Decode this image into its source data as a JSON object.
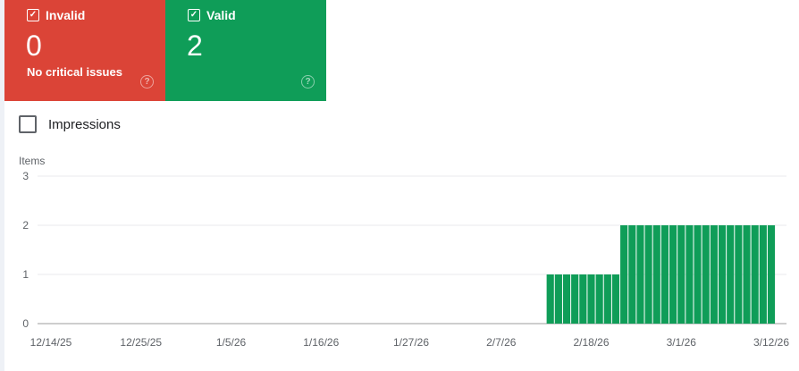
{
  "cards": [
    {
      "label": "Invalid",
      "count": "0",
      "subtitle": "No critical issues",
      "checked": true,
      "color": "#db4437"
    },
    {
      "label": "Valid",
      "count": "2",
      "subtitle": "",
      "checked": true,
      "color": "#0f9d58"
    }
  ],
  "impressions": {
    "label": "Impressions",
    "checked": false
  },
  "chart_data": {
    "type": "bar",
    "ylabel": "Items",
    "ylim": [
      0,
      3
    ],
    "yticks": [
      "0",
      "1",
      "2",
      "3"
    ],
    "xlim": [
      "12/14/25",
      "3/12/26"
    ],
    "xticks": [
      "12/14/25",
      "12/25/25",
      "1/5/26",
      "1/16/26",
      "1/27/26",
      "2/7/26",
      "2/18/26",
      "3/1/26",
      "3/12/26"
    ],
    "grid": true,
    "color": "#0f9d58",
    "points": [
      {
        "date": "2/13/26",
        "value": 1
      },
      {
        "date": "2/14/26",
        "value": 1
      },
      {
        "date": "2/15/26",
        "value": 1
      },
      {
        "date": "2/16/26",
        "value": 1
      },
      {
        "date": "2/17/26",
        "value": 1
      },
      {
        "date": "2/18/26",
        "value": 1
      },
      {
        "date": "2/19/26",
        "value": 1
      },
      {
        "date": "2/20/26",
        "value": 1
      },
      {
        "date": "2/21/26",
        "value": 1
      },
      {
        "date": "2/22/26",
        "value": 2
      },
      {
        "date": "2/23/26",
        "value": 2
      },
      {
        "date": "2/24/26",
        "value": 2
      },
      {
        "date": "2/25/26",
        "value": 2
      },
      {
        "date": "2/26/26",
        "value": 2
      },
      {
        "date": "2/27/26",
        "value": 2
      },
      {
        "date": "2/28/26",
        "value": 2
      },
      {
        "date": "3/1/26",
        "value": 2
      },
      {
        "date": "3/2/26",
        "value": 2
      },
      {
        "date": "3/3/26",
        "value": 2
      },
      {
        "date": "3/4/26",
        "value": 2
      },
      {
        "date": "3/5/26",
        "value": 2
      },
      {
        "date": "3/6/26",
        "value": 2
      },
      {
        "date": "3/7/26",
        "value": 2
      },
      {
        "date": "3/8/26",
        "value": 2
      },
      {
        "date": "3/9/26",
        "value": 2
      },
      {
        "date": "3/10/26",
        "value": 2
      },
      {
        "date": "3/11/26",
        "value": 2
      },
      {
        "date": "3/12/26",
        "value": 2
      }
    ]
  }
}
